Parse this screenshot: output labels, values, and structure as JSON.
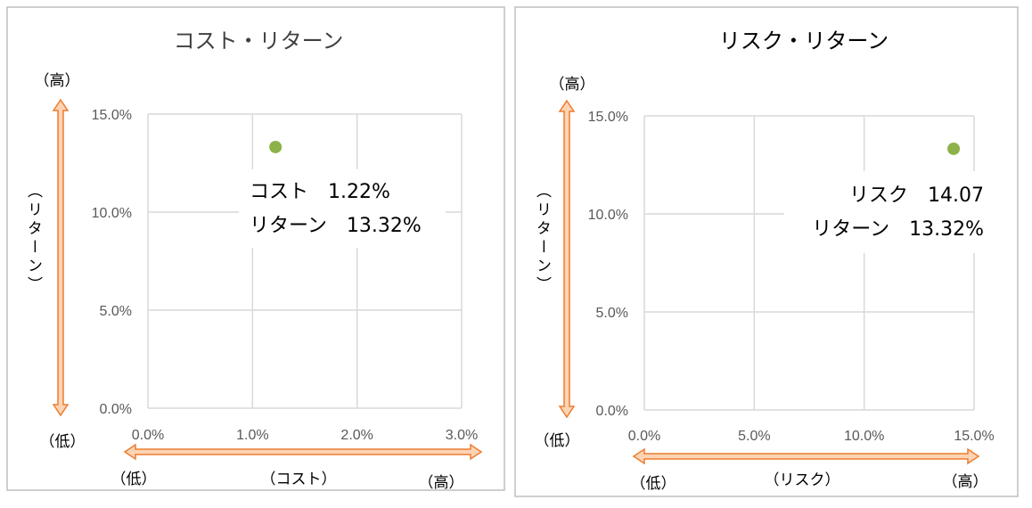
{
  "colors": {
    "point": "#8DB24A",
    "arrow_fill": "#FBD4B4",
    "arrow_stroke": "#ED7D31",
    "grid": "#D9D9D9",
    "tick": "#595959",
    "panel_border": "#BFBFBF"
  },
  "chart_data": [
    {
      "type": "scatter",
      "title": "コスト・リターン",
      "x_ticks": [
        "0.0%",
        "1.0%",
        "2.0%",
        "3.0%"
      ],
      "y_ticks": [
        "0.0%",
        "5.0%",
        "10.0%",
        "15.0%"
      ],
      "xlim": [
        0,
        3
      ],
      "ylim": [
        0,
        15
      ],
      "points": [
        {
          "x": 1.22,
          "y": 13.32
        }
      ],
      "annotation": [
        "コスト　1.22%",
        "リターン　13.32%"
      ],
      "x_axis_label": "（コスト）",
      "x_low": "（低）",
      "x_high": "（高）",
      "y_axis_label": "（リターン）",
      "y_low": "（低）",
      "y_high": "（高）"
    },
    {
      "type": "scatter",
      "title": "リスク・リターン",
      "x_ticks": [
        "0.0%",
        "5.0%",
        "10.0%",
        "15.0%"
      ],
      "y_ticks": [
        "0.0%",
        "5.0%",
        "10.0%",
        "15.0%"
      ],
      "xlim": [
        0,
        15
      ],
      "ylim": [
        0,
        15
      ],
      "points": [
        {
          "x": 14.07,
          "y": 13.32
        }
      ],
      "annotation": [
        "リスク　14.07",
        "リターン　13.32%"
      ],
      "x_axis_label": "（リスク）",
      "x_low": "（低）",
      "x_high": "（高）",
      "y_axis_label": "（リターン）",
      "y_low": "（低）",
      "y_high": "（高）"
    }
  ]
}
